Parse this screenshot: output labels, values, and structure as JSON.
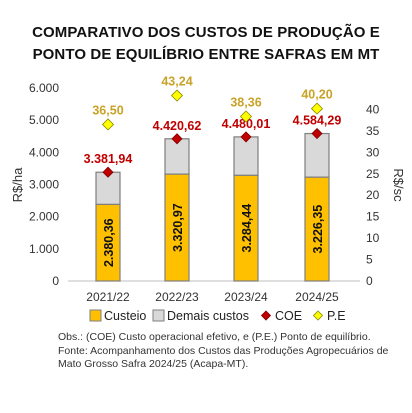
{
  "title_line1": "COMPARATIVO DOS CUSTOS DE PRODUÇÃO E",
  "title_line2": "PONTO DE EQUILÍBRIO ENTRE SAFRAS EM MT",
  "notes": {
    "obs": "Obs.: (COE) Custo operacional efetivo, e (P.E.) Ponto de equilíbrio.",
    "fonte": "Fonte: Acompanhamento dos Custos das Produções Agropecuários de Mato Grosso Safra 2024/25 (Acapa-MT)."
  },
  "chart_data": {
    "type": "bar",
    "stacked": true,
    "categories": [
      "2021/22",
      "2022/23",
      "2023/24",
      "2024/25"
    ],
    "series": [
      {
        "name": "Custeio",
        "type": "bar",
        "axis": "left",
        "color": "#FFC000",
        "values": [
          2380.36,
          3320.97,
          3284.44,
          3226.35
        ],
        "labels": [
          "2.380,36",
          "3.320,97",
          "3.284,44",
          "3.226,35"
        ]
      },
      {
        "name": "Demais custos",
        "type": "bar",
        "axis": "left",
        "color": "#D9D9D9",
        "values": [
          1001.58,
          1099.65,
          1195.57,
          1357.94
        ]
      },
      {
        "name": "COE",
        "type": "marker",
        "axis": "left",
        "color": "#C00000",
        "values": [
          3381.94,
          4420.62,
          4480.01,
          4584.29
        ],
        "labels": [
          "3.381,94",
          "4.420,62",
          "4.480,01",
          "4.584,29"
        ]
      },
      {
        "name": "P.E",
        "type": "marker",
        "axis": "right",
        "color": "#FFFF00",
        "values": [
          36.5,
          43.24,
          38.36,
          40.2
        ],
        "labels": [
          "36,50",
          "43,24",
          "38,36",
          "40,20"
        ]
      }
    ],
    "ylabel": "R$/ha",
    "y2label": "R$/sc",
    "ylim": [
      0,
      6000
    ],
    "y2lim": [
      0,
      45
    ],
    "yticks": [
      "0",
      "1.000",
      "2.000",
      "3.000",
      "4.000",
      "5.000",
      "6.000"
    ],
    "y2ticks": [
      "0",
      "5",
      "10",
      "15",
      "20",
      "25",
      "30",
      "35",
      "40"
    ],
    "grid": false,
    "legend": "bottom"
  }
}
